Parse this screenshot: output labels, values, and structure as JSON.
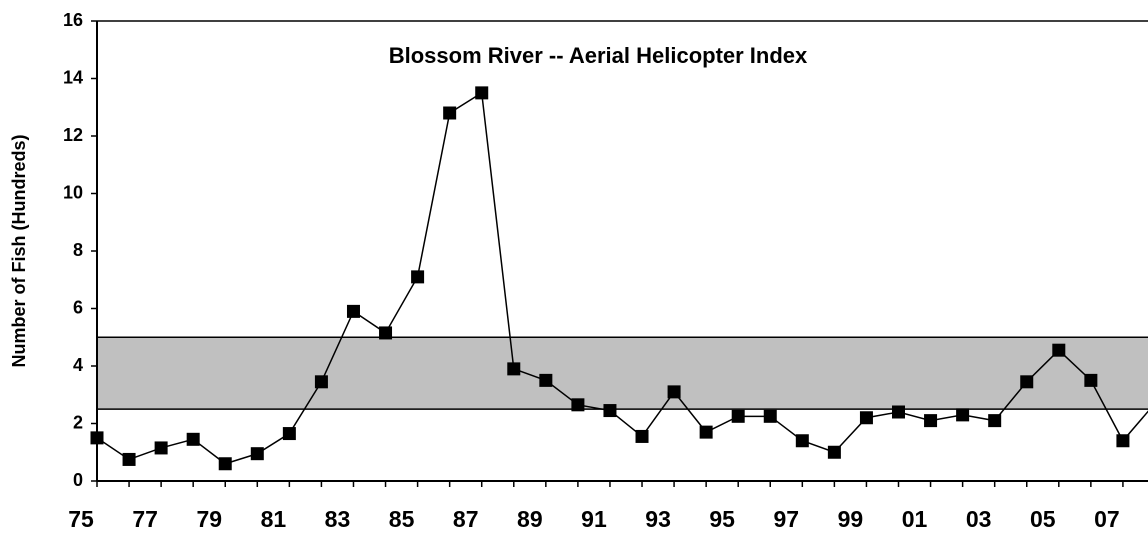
{
  "chart_data": {
    "type": "line",
    "title": "Blossom River -- Aerial Helicopter Index",
    "y_label": "Number of Fish (Hundreds)",
    "categories": [
      "75",
      null,
      "77",
      null,
      "79",
      null,
      "81",
      null,
      "83",
      null,
      "85",
      null,
      "87",
      null,
      "89",
      null,
      "91",
      null,
      "93",
      null,
      "95",
      null,
      "97",
      null,
      "99",
      null,
      "01",
      null,
      "03",
      null,
      "05",
      null,
      "07",
      null
    ],
    "series": [
      {
        "name": "Aerial Helicopter Index",
        "color": "#000000",
        "values": [
          1.5,
          0.75,
          1.15,
          1.45,
          0.6,
          0.95,
          1.65,
          3.45,
          5.9,
          5.15,
          7.1,
          12.8,
          13.5,
          3.9,
          3.5,
          2.65,
          2.45,
          1.55,
          3.1,
          1.7,
          2.25,
          2.25,
          1.4,
          1.0,
          2.2,
          2.4,
          2.1,
          2.3,
          2.1,
          3.45,
          4.55,
          3.5,
          1.4,
          2.7
        ]
      }
    ],
    "band": [
      2.5,
      5
    ],
    "band_color": "#c0c0c0",
    "ylim": [
      0,
      16
    ],
    "yticks": [
      0,
      2,
      4,
      6,
      8,
      10,
      12,
      14,
      16
    ]
  }
}
